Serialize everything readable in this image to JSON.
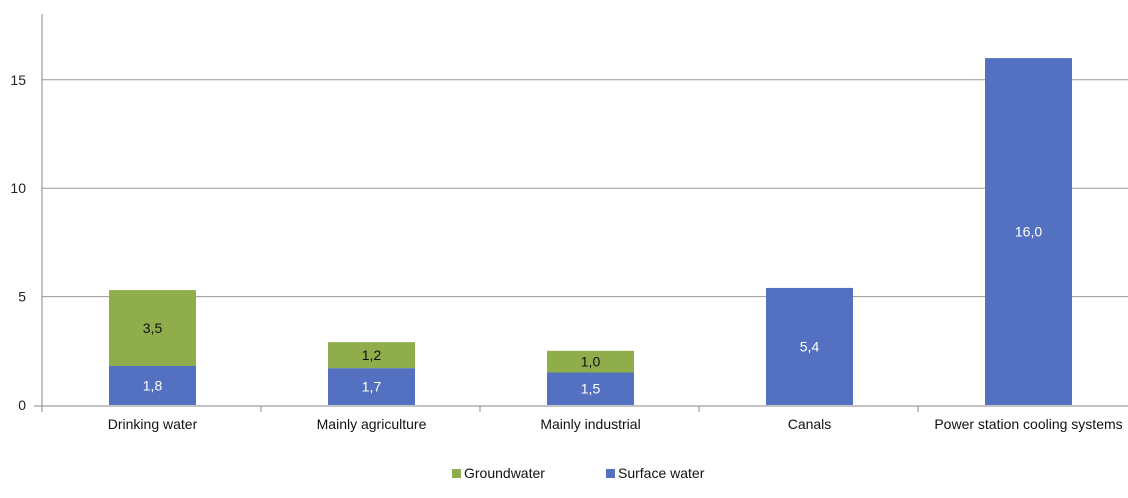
{
  "chart_data": {
    "type": "bar",
    "stacked": true,
    "title": "",
    "xlabel": "",
    "ylabel": "",
    "categories": [
      "Drinking water",
      "Mainly agriculture",
      "Mainly industrial",
      "Canals",
      "Power station cooling systems"
    ],
    "series": [
      {
        "name": "Surface water",
        "color": "#5470C0",
        "label_color": "#ffffff",
        "values": [
          1.8,
          1.7,
          1.5,
          5.4,
          16.0
        ],
        "labels": [
          "1,8",
          "1,7",
          "1,5",
          "5,4",
          "16,0"
        ]
      },
      {
        "name": "Groundwater",
        "color": "#8FAD4B",
        "label_color": "#111111",
        "values": [
          3.5,
          1.2,
          1.0,
          null,
          null
        ],
        "labels": [
          "3,5",
          "1,2",
          "1,0",
          "",
          ""
        ]
      }
    ],
    "ylim": [
      0,
      18
    ],
    "yticks": [
      0,
      5,
      10,
      15
    ],
    "ytick_labels": [
      "0",
      "5",
      "10",
      "15"
    ],
    "grid": true,
    "legend": {
      "placement": "bottom",
      "order": [
        "Groundwater",
        "Surface water"
      ]
    }
  }
}
